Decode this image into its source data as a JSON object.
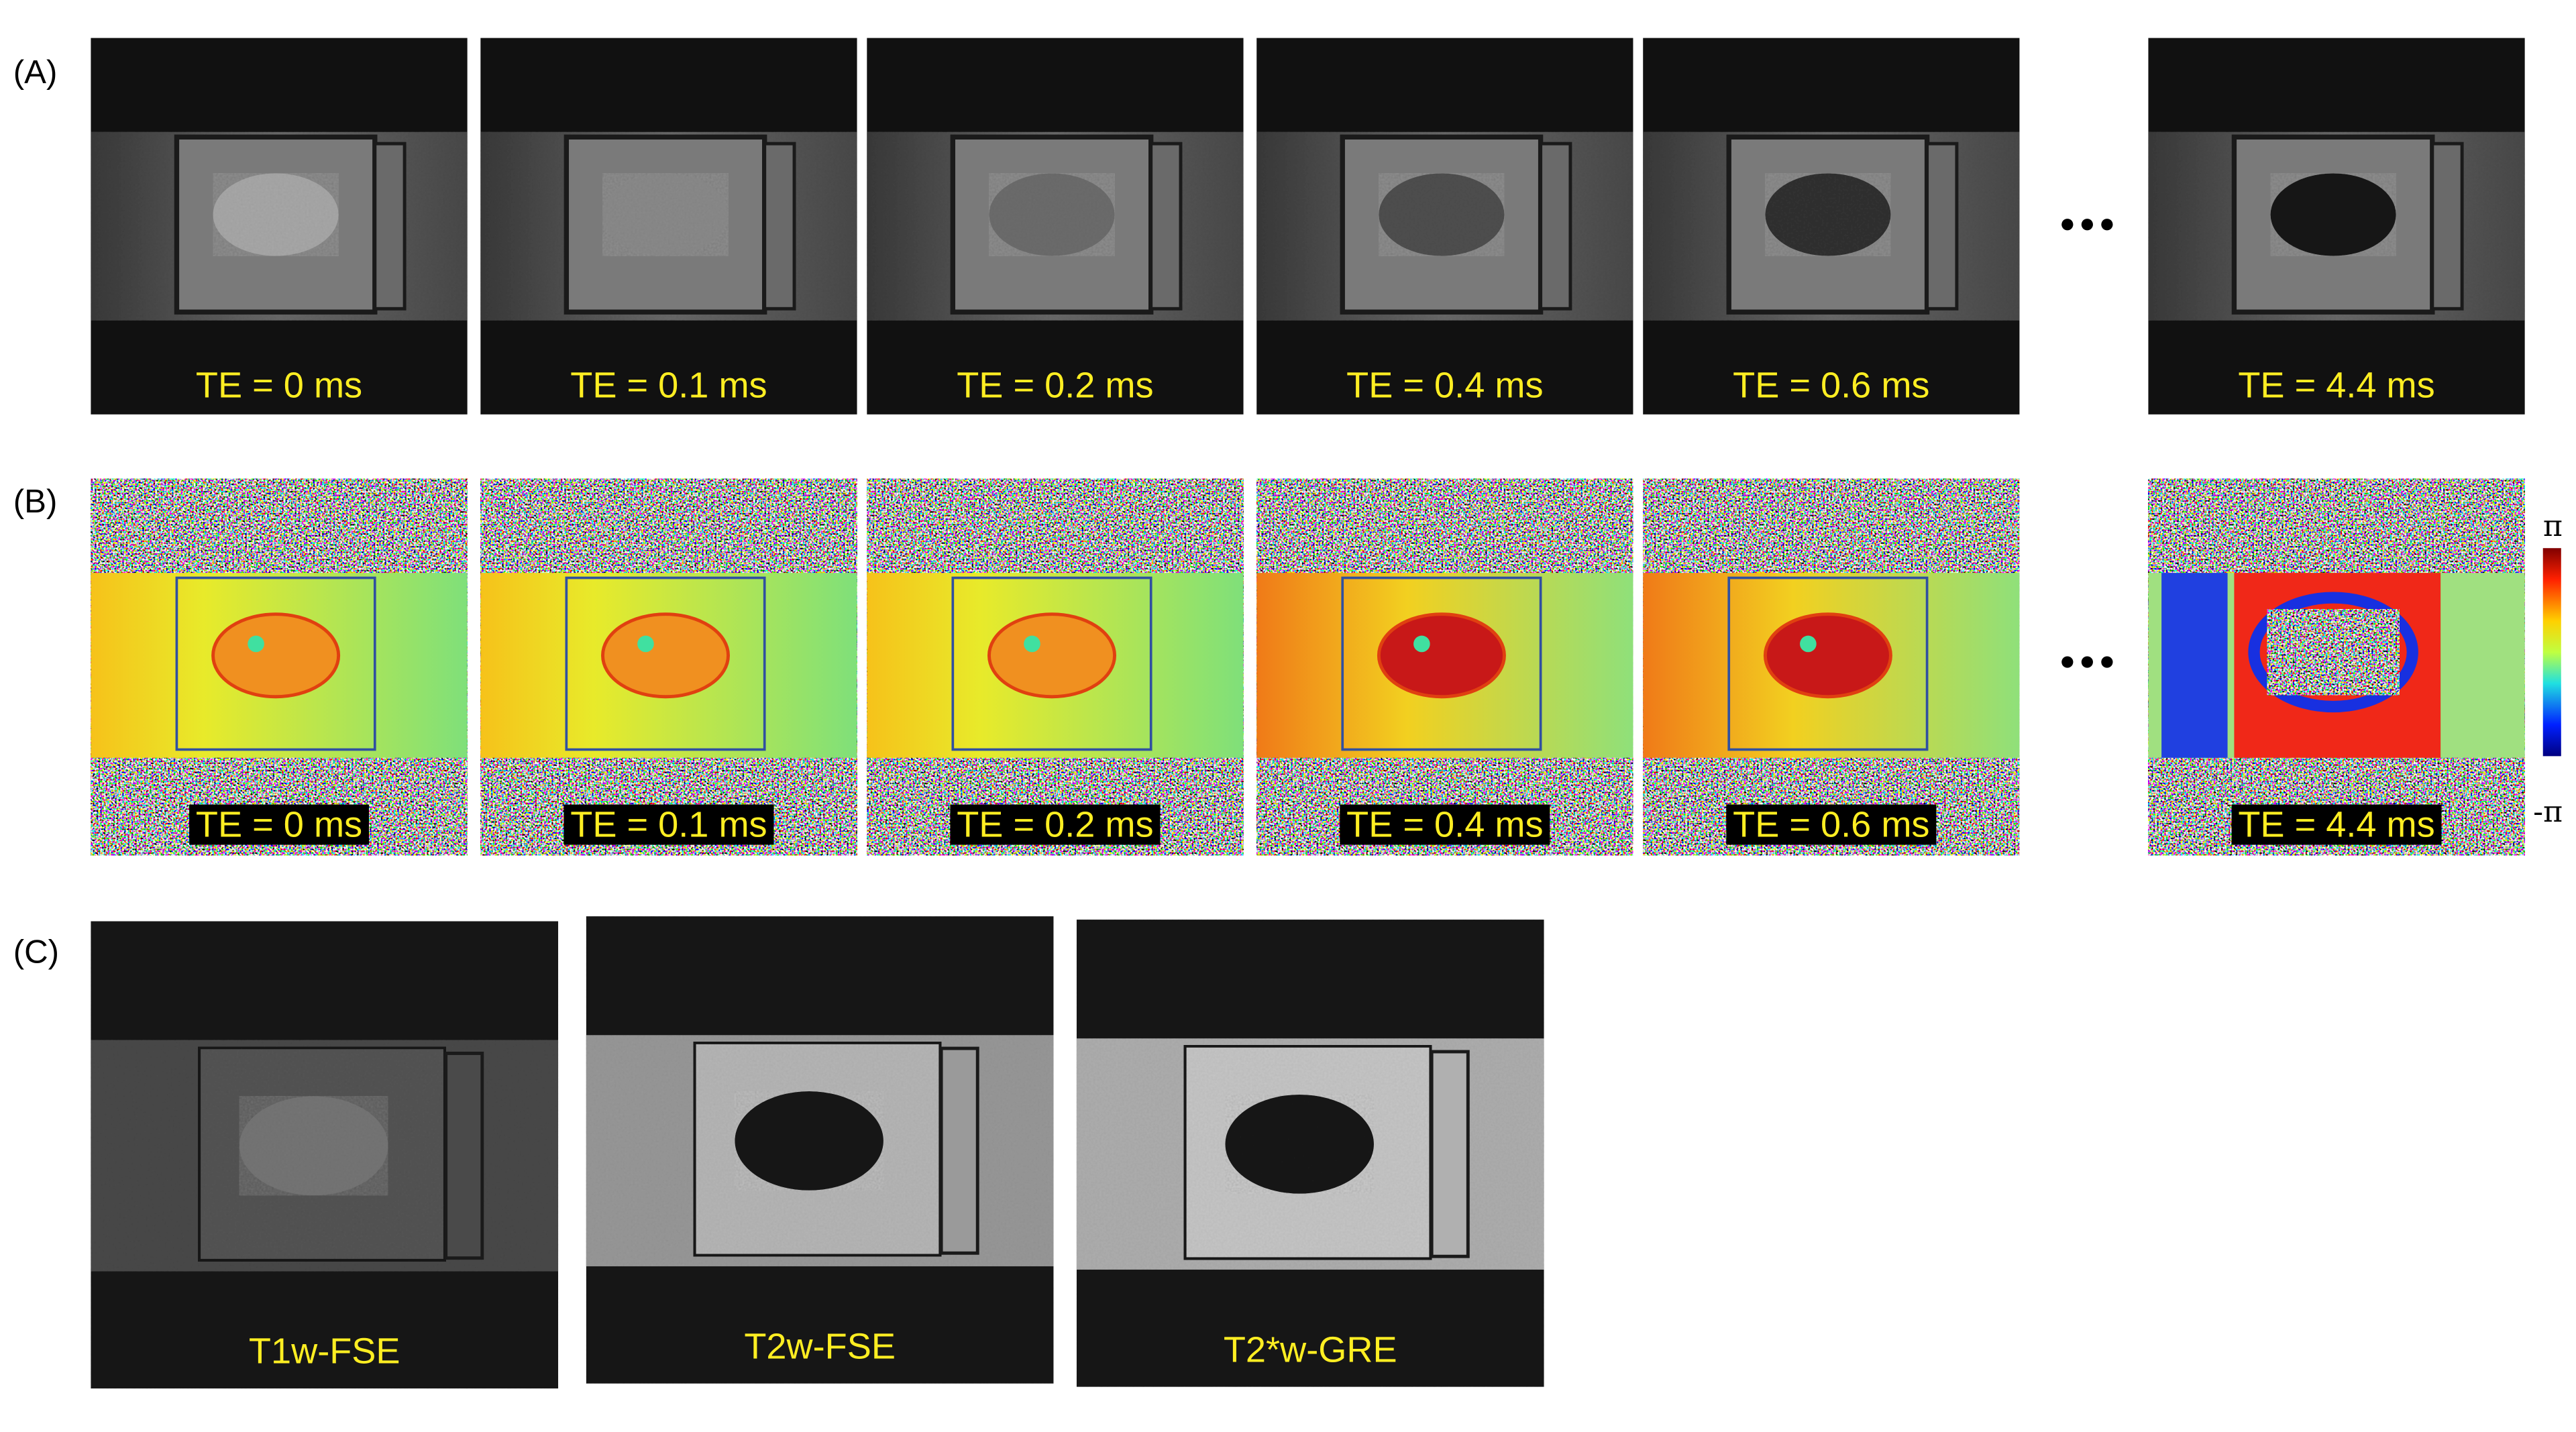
{
  "panel_labels": [
    "(A)",
    "(B)",
    "(C)"
  ],
  "magnitude_row": {
    "labels": [
      "TE = 0 ms",
      "TE = 0.1 ms",
      "TE = 0.2 ms",
      "TE = 0.4 ms",
      "TE = 0.6 ms",
      "TE = 4.4 ms"
    ]
  },
  "phase_row": {
    "labels": [
      "TE = 0 ms",
      "TE = 0.1 ms",
      "TE = 0.2 ms",
      "TE = 0.4 ms",
      "TE = 0.6 ms",
      "TE = 4.4 ms"
    ],
    "colorbar": {
      "max_label": "π",
      "min_label": "-π"
    }
  },
  "weighted_row": {
    "labels": [
      "T1w-FSE",
      "T2w-FSE",
      "T2*w-GRE"
    ]
  }
}
